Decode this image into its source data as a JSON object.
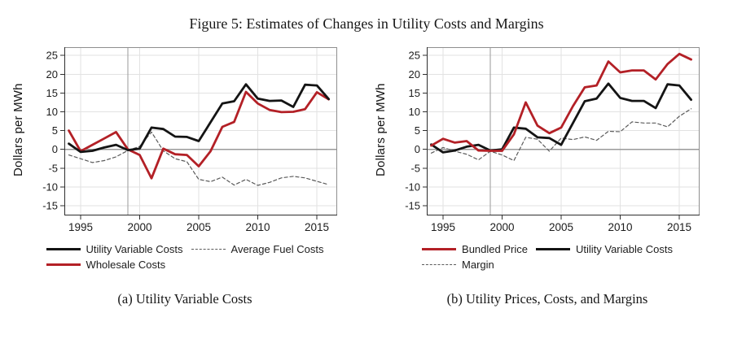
{
  "figure": {
    "title": "Figure 5: Estimates of Changes in Utility Costs and Margins"
  },
  "colors": {
    "black_line": "#141414",
    "red_line": "#b32026",
    "dashed_line": "#5a5a5a",
    "gridline": "#e2e2e2",
    "ref_line": "#9a9a9a",
    "border": "#8f8f8f",
    "axis": "#2f2f2f",
    "text": "#1c1c1c"
  },
  "panels": [
    {
      "id": "a",
      "caption": "(a) Utility Variable Costs",
      "ylabel": "Dollars per MWh",
      "legend": {
        "rows": [
          [
            {
              "label": "Utility Variable Costs",
              "swatch": "black-solid"
            },
            {
              "label": "Average Fuel Costs",
              "swatch": "dashed"
            }
          ],
          [
            {
              "label": "Wholesale Costs",
              "swatch": "red-solid"
            }
          ]
        ]
      }
    },
    {
      "id": "b",
      "caption": "(b) Utility Prices, Costs, and Margins",
      "ylabel": "Dollars per MWh",
      "legend": {
        "rows": [
          [
            {
              "label": "Bundled Price",
              "swatch": "red-solid"
            },
            {
              "label": "Utility Variable Costs",
              "swatch": "black-solid"
            }
          ],
          [
            {
              "label": "Margin",
              "swatch": "dashed"
            }
          ]
        ]
      }
    }
  ],
  "chart_data": [
    {
      "type": "line",
      "title": "(a) Utility Variable Costs",
      "xlabel": "",
      "ylabel": "Dollars per MWh",
      "x": [
        1994,
        1995,
        1996,
        1997,
        1998,
        1999,
        2000,
        2001,
        2002,
        2003,
        2004,
        2005,
        2006,
        2007,
        2008,
        2009,
        2010,
        2011,
        2012,
        2013,
        2014,
        2015,
        2016
      ],
      "xticks": [
        1995,
        2000,
        2005,
        2010,
        2015
      ],
      "yticks": [
        25,
        20,
        15,
        10,
        5,
        0,
        -5,
        -10,
        -15
      ],
      "xlim": [
        1993.62,
        2016.72
      ],
      "ylim": [
        -17.6,
        27.2
      ],
      "grid": true,
      "ref_line_y": 0,
      "ref_line_x": 1999,
      "legend_position": "bottom",
      "series": [
        {
          "name": "Average Fuel Costs",
          "style": "dashed",
          "color": "#5a5a5a",
          "width": 1.2,
          "values": [
            -1.5,
            -2.5,
            -3.5,
            -3.0,
            -2.0,
            -0.3,
            0.8,
            4.6,
            -0.4,
            -2.5,
            -3.3,
            -8.0,
            -8.6,
            -7.4,
            -9.5,
            -8.0,
            -9.6,
            -8.8,
            -7.6,
            -7.2,
            -7.6,
            -8.5,
            -9.4
          ]
        },
        {
          "name": "Wholesale Costs",
          "style": "solid",
          "color": "#b32026",
          "width": 2.8,
          "values": [
            5.0,
            -0.5,
            1.2,
            2.9,
            4.6,
            0.0,
            -1.5,
            -7.7,
            0.2,
            -1.3,
            -1.5,
            -4.5,
            -0.5,
            6.0,
            7.3,
            15.3,
            12.2,
            10.5,
            9.9,
            10.0,
            10.7,
            15.2,
            13.3
          ]
        },
        {
          "name": "Utility Variable Costs",
          "style": "solid",
          "color": "#141414",
          "width": 2.8,
          "values": [
            1.5,
            -0.7,
            -0.4,
            0.5,
            1.2,
            -0.2,
            0.2,
            5.8,
            5.4,
            3.4,
            3.3,
            2.2,
            7.2,
            12.2,
            12.8,
            17.3,
            13.5,
            12.9,
            13.0,
            11.3,
            17.2,
            17.0,
            13.4
          ]
        }
      ]
    },
    {
      "type": "line",
      "title": "(b) Utility Prices, Costs, and Margins",
      "xlabel": "",
      "ylabel": "Dollars per MWh",
      "x": [
        1994,
        1995,
        1996,
        1997,
        1998,
        1999,
        2000,
        2001,
        2002,
        2003,
        2004,
        2005,
        2006,
        2007,
        2008,
        2009,
        2010,
        2011,
        2012,
        2013,
        2014,
        2015,
        2016
      ],
      "xticks": [
        1995,
        2000,
        2005,
        2010,
        2015
      ],
      "yticks": [
        25,
        20,
        15,
        10,
        5,
        0,
        -5,
        -10,
        -15
      ],
      "xlim": [
        1993.62,
        2016.72
      ],
      "ylim": [
        -17.6,
        27.2
      ],
      "grid": true,
      "ref_line_y": 0,
      "ref_line_x": 1999,
      "legend_position": "bottom",
      "series": [
        {
          "name": "Margin",
          "style": "dashed",
          "color": "#5a5a5a",
          "width": 1.2,
          "values": [
            -1.0,
            0.5,
            -0.5,
            -1.3,
            -2.8,
            -0.5,
            -1.5,
            -3.0,
            3.2,
            2.7,
            -0.5,
            3.0,
            2.6,
            3.3,
            2.4,
            4.8,
            4.7,
            7.3,
            7.0,
            7.0,
            6.0,
            8.8,
            10.8
          ]
        },
        {
          "name": "Utility Variable Costs",
          "style": "solid",
          "color": "#141414",
          "width": 2.8,
          "values": [
            1.3,
            -0.8,
            -0.3,
            0.7,
            1.2,
            -0.3,
            0.0,
            5.8,
            5.5,
            3.2,
            3.0,
            1.2,
            7.0,
            12.8,
            13.5,
            17.5,
            13.7,
            12.9,
            12.9,
            11.0,
            17.3,
            17.0,
            13.2
          ]
        },
        {
          "name": "Bundled Price",
          "style": "solid",
          "color": "#b32026",
          "width": 2.8,
          "values": [
            1.0,
            2.8,
            1.8,
            2.2,
            -0.3,
            -0.4,
            -0.4,
            4.0,
            12.5,
            6.3,
            4.3,
            5.8,
            11.5,
            16.5,
            17.0,
            23.4,
            20.5,
            21.0,
            21.0,
            18.6,
            22.7,
            25.4,
            23.9
          ]
        }
      ]
    }
  ]
}
